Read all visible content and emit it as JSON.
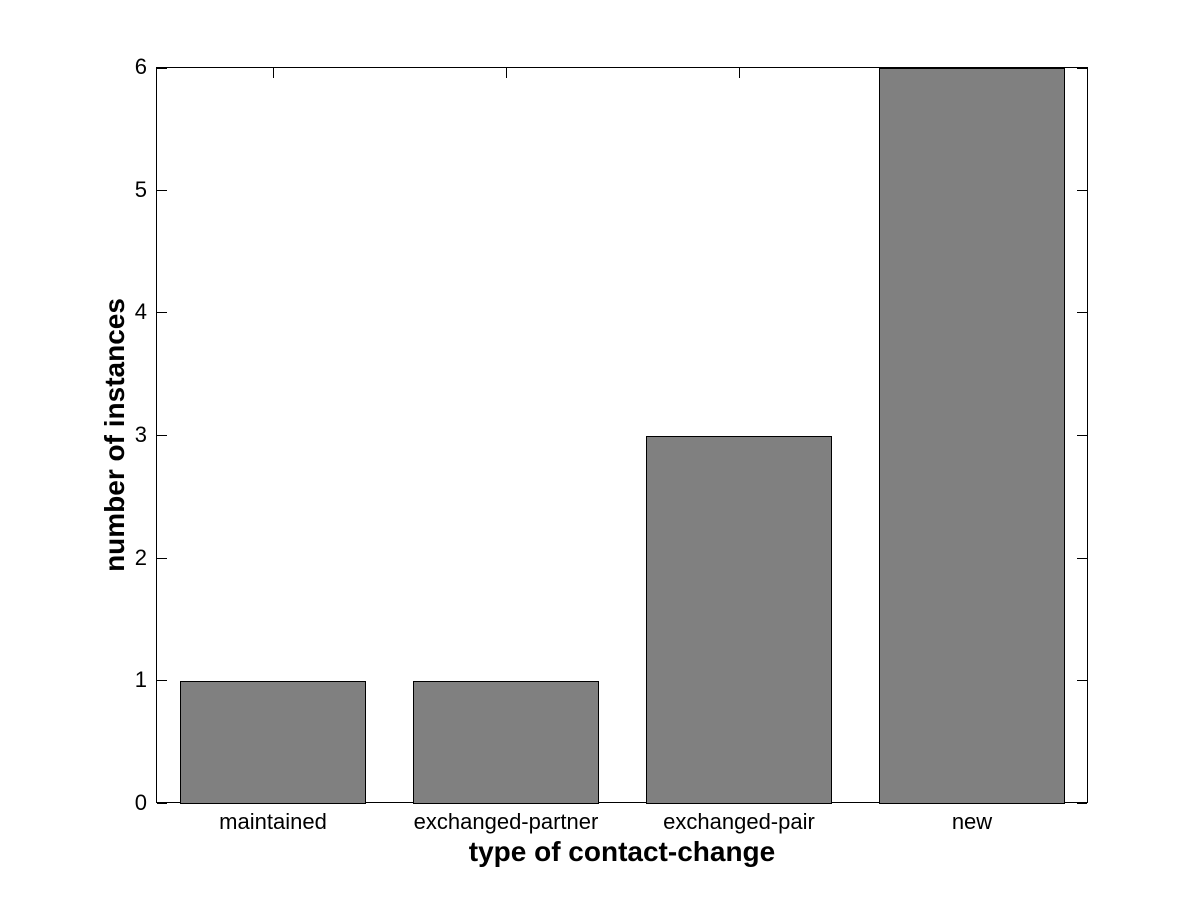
{
  "chart_data": {
    "type": "bar",
    "title": "",
    "categories": [
      "maintained",
      "exchanged-partner",
      "exchanged-pair",
      "new"
    ],
    "values": [
      1,
      1,
      3,
      6
    ],
    "xlabel": "type of contact-change",
    "ylabel": "number of instances",
    "ylim": [
      0,
      6
    ],
    "yticks": [
      0,
      1,
      2,
      3,
      4,
      5,
      6
    ],
    "bar_width_fraction": 0.8,
    "bar_color": "#808080",
    "bar_edge_color": "#000000",
    "axis_color": "#000000",
    "background_color": "#ffffff",
    "grid": false,
    "legend": null
  }
}
